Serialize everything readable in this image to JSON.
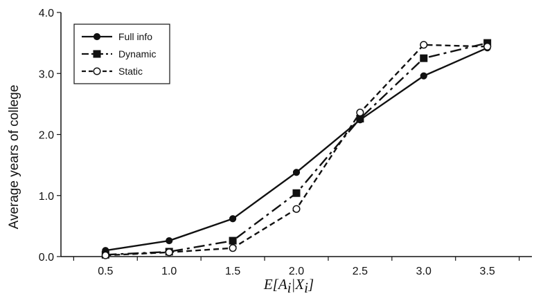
{
  "chart_data": {
    "type": "line",
    "x": [
      0.5,
      1.0,
      1.5,
      2.0,
      2.5,
      3.0,
      3.5
    ],
    "x_tick_labels": [
      "0.5",
      "1.0",
      "1.5",
      "2.0",
      "2.5",
      "3.0",
      "3.5"
    ],
    "y_tick_labels": [
      "0.0",
      "1.0",
      "2.0",
      "3.0",
      "4.0"
    ],
    "xlabel": "E[A_i|X_i]",
    "ylabel": "Average years of college",
    "xlim": [
      0.15,
      3.85
    ],
    "ylim": [
      0,
      4
    ],
    "grid": false,
    "legend_position": "top-left",
    "series": [
      {
        "name": "Full info",
        "values": [
          0.1,
          0.26,
          0.62,
          1.38,
          2.24,
          2.96,
          3.42
        ],
        "marker": "filled-circle",
        "line_style": "solid",
        "color": "#111111"
      },
      {
        "name": "Dynamic",
        "values": [
          0.03,
          0.08,
          0.26,
          1.04,
          2.26,
          3.25,
          3.5
        ],
        "marker": "filled-square",
        "line_style": "dash-dot",
        "color": "#111111"
      },
      {
        "name": "Static",
        "values": [
          0.02,
          0.07,
          0.14,
          0.78,
          2.36,
          3.47,
          3.44
        ],
        "marker": "open-circle",
        "line_style": "dashed",
        "color": "#111111"
      }
    ]
  }
}
